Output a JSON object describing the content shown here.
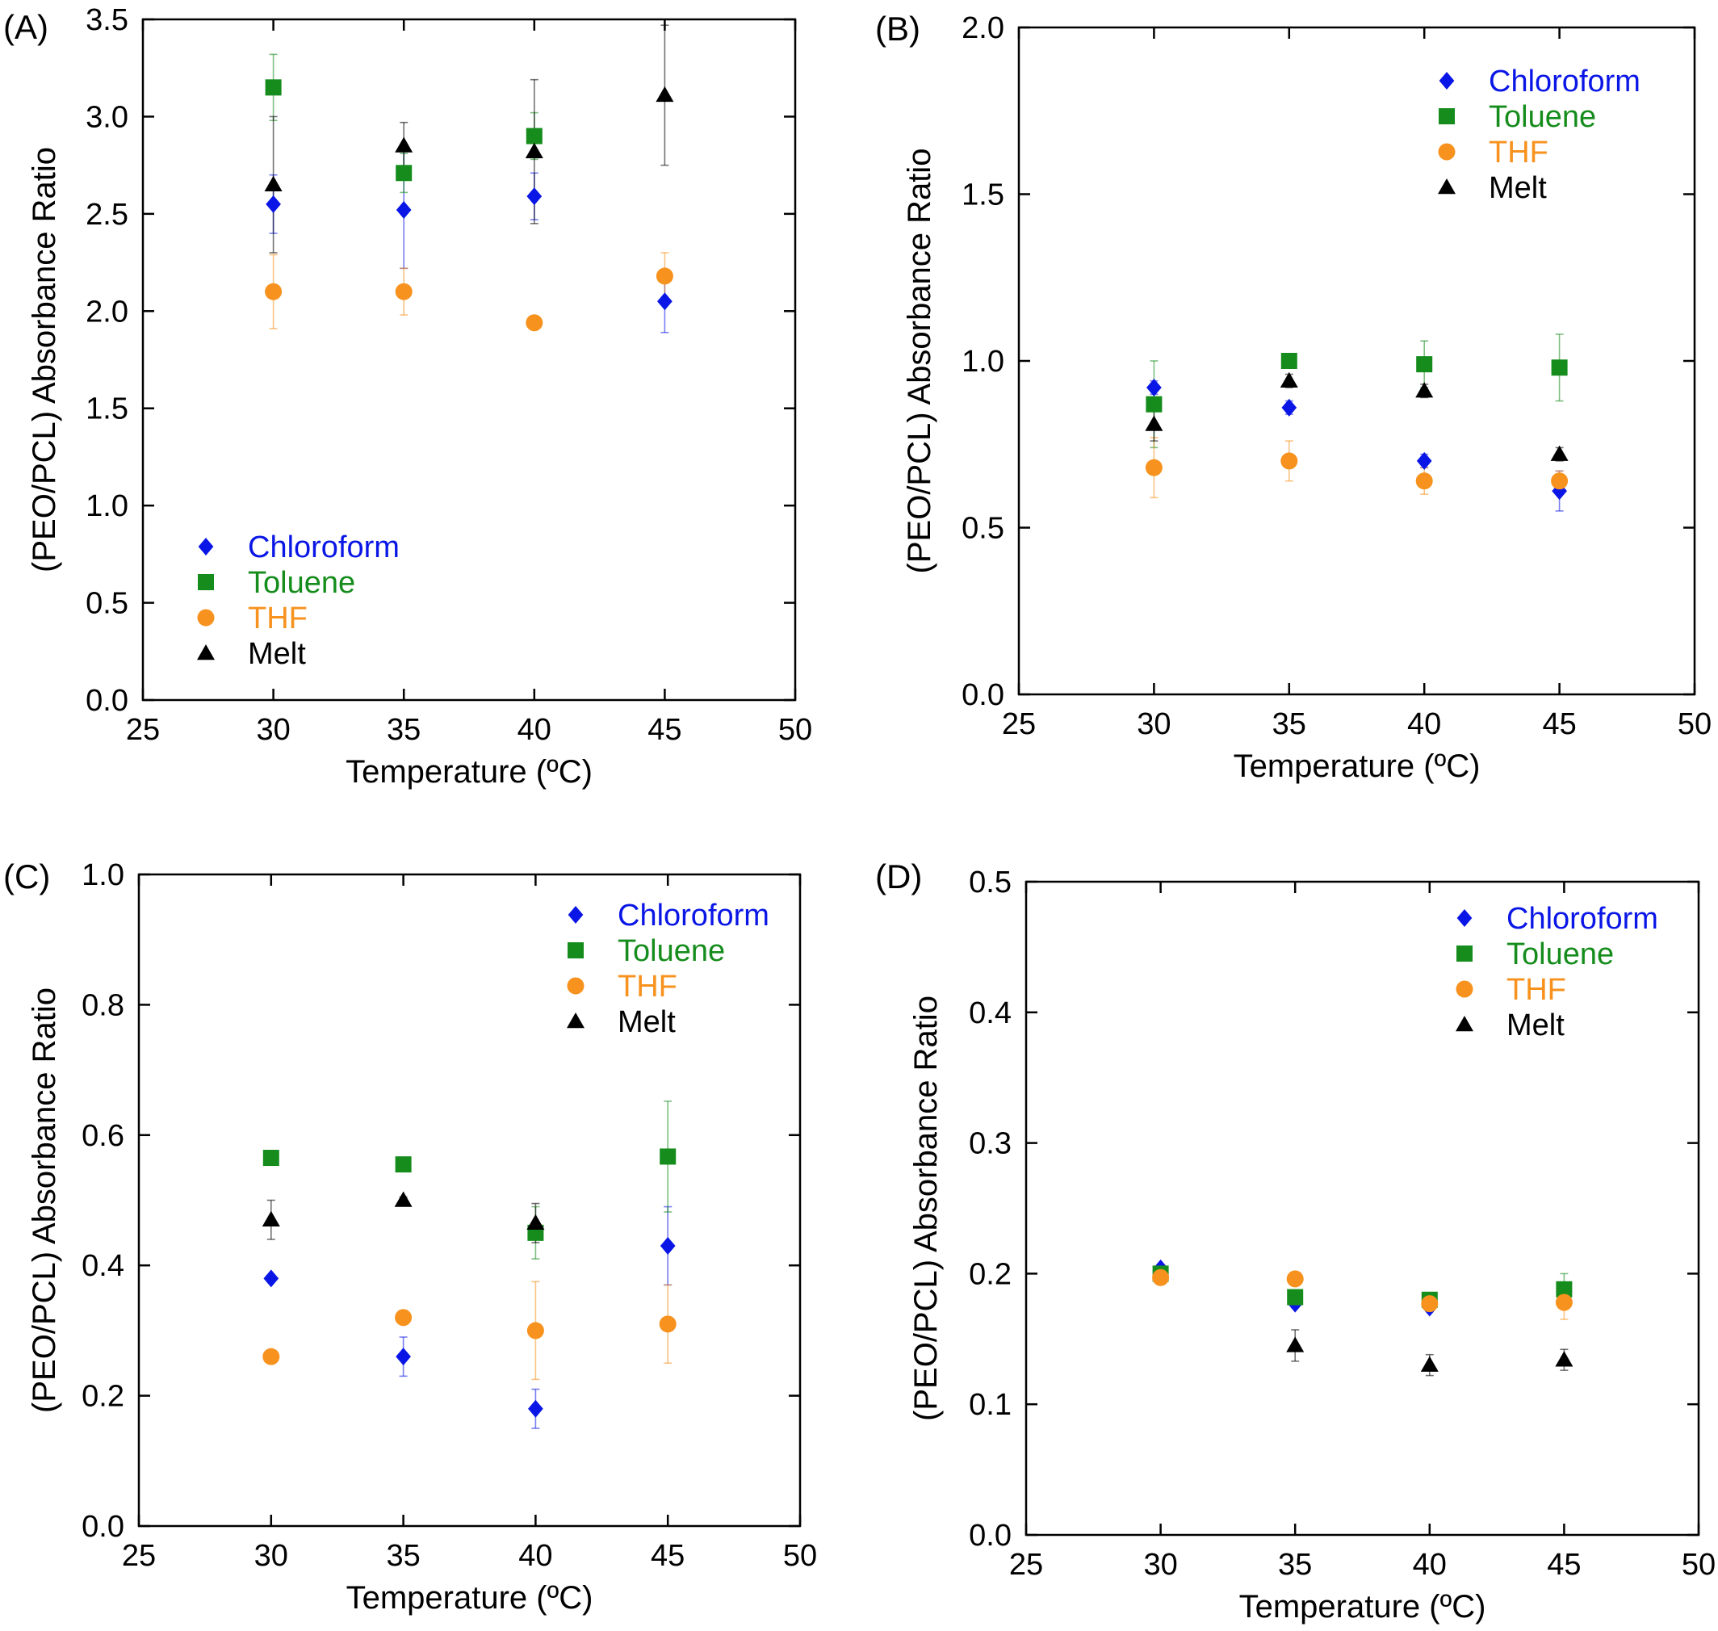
{
  "figure": {
    "panel_labels": [
      "(A)",
      "(B)",
      "(C)",
      "(D)"
    ]
  },
  "legend_series": [
    "Chloroform",
    "Toluene",
    "THF",
    "Melt"
  ],
  "series_colors": {
    "Chloroform": "#0a16e6",
    "Toluene": "#158c1c",
    "THF": "#f7921e",
    "Melt": "#000000"
  },
  "series_markers": {
    "Chloroform": "diamond",
    "Toluene": "square",
    "THF": "circle",
    "Melt": "triangle"
  },
  "chart_data": [
    {
      "panel": "(A)",
      "type": "scatter",
      "xlabel": "Temperature (ºC)",
      "ylabel": "(PEO/PCL) Absorbance Ratio",
      "xlim": [
        25,
        50
      ],
      "ylim": [
        0,
        3.5
      ],
      "xticks": [
        "25",
        "30",
        "35",
        "40",
        "45",
        "50"
      ],
      "yticks": [
        "0.0",
        "0.5",
        "1.0",
        "1.5",
        "2.0",
        "2.5",
        "3.0",
        "3.5"
      ],
      "legend_position": "bottom-left",
      "grid": false,
      "x": [
        30,
        35,
        40,
        45
      ],
      "series": [
        {
          "name": "Chloroform",
          "values": [
            2.55,
            2.52,
            2.59,
            2.05
          ],
          "errors": [
            0.15,
            0.3,
            0.12,
            0.16
          ]
        },
        {
          "name": "Toluene",
          "values": [
            3.15,
            2.71,
            2.9,
            null
          ],
          "errors": [
            0.17,
            0.1,
            0.12,
            null
          ]
        },
        {
          "name": "THF",
          "values": [
            2.1,
            2.1,
            1.94,
            2.18
          ],
          "errors": [
            0.19,
            0.12,
            0.02,
            0.12
          ]
        },
        {
          "name": "Melt",
          "values": [
            2.65,
            2.85,
            2.82,
            3.11
          ],
          "errors": [
            0.35,
            0.12,
            0.37,
            0.36
          ]
        }
      ]
    },
    {
      "panel": "(B)",
      "type": "scatter",
      "xlabel": "Temperature (ºC)",
      "ylabel": "(PEO/PCL) Absorbance Ratio",
      "xlim": [
        25,
        50
      ],
      "ylim": [
        0,
        2.0
      ],
      "xticks": [
        "25",
        "30",
        "35",
        "40",
        "45",
        "50"
      ],
      "yticks": [
        "0.0",
        "0.5",
        "1.0",
        "1.5",
        "2.0"
      ],
      "legend_position": "top-right",
      "grid": false,
      "x": [
        30,
        35,
        40,
        45
      ],
      "series": [
        {
          "name": "Chloroform",
          "values": [
            0.92,
            0.86,
            0.7,
            0.61
          ],
          "errors": [
            0.02,
            0.02,
            0.02,
            0.06
          ]
        },
        {
          "name": "Toluene",
          "values": [
            0.87,
            1.0,
            0.99,
            0.98
          ],
          "errors": [
            0.13,
            0.02,
            0.07,
            0.1
          ]
        },
        {
          "name": "THF",
          "values": [
            0.68,
            0.7,
            0.64,
            0.64
          ],
          "errors": [
            0.09,
            0.06,
            0.04,
            0.03
          ]
        },
        {
          "name": "Melt",
          "values": [
            0.81,
            0.94,
            0.91,
            0.72
          ],
          "errors": [
            0.05,
            0.02,
            0.02,
            0.02
          ]
        }
      ]
    },
    {
      "panel": "(C)",
      "type": "scatter",
      "xlabel": "Temperature (ºC)",
      "ylabel": "(PEO/PCL) Absorbance Ratio",
      "xlim": [
        25,
        50
      ],
      "ylim": [
        0,
        1.0
      ],
      "xticks": [
        "25",
        "30",
        "35",
        "40",
        "45",
        "50"
      ],
      "yticks": [
        "0.0",
        "0.2",
        "0.4",
        "0.6",
        "0.8",
        "1.0"
      ],
      "legend_position": "top-right",
      "grid": false,
      "x": [
        30,
        35,
        40,
        45
      ],
      "series": [
        {
          "name": "Chloroform",
          "values": [
            0.38,
            0.26,
            0.18,
            0.43
          ],
          "errors": [
            0.005,
            0.03,
            0.03,
            0.06
          ]
        },
        {
          "name": "Toluene",
          "values": [
            0.565,
            0.555,
            0.45,
            0.567
          ],
          "errors": [
            0.005,
            0.005,
            0.04,
            0.085
          ]
        },
        {
          "name": "THF",
          "values": [
            0.26,
            0.32,
            0.3,
            0.31
          ],
          "errors": [
            0.005,
            0.005,
            0.075,
            0.06
          ]
        },
        {
          "name": "Melt",
          "values": [
            0.47,
            0.5,
            0.465,
            null
          ],
          "errors": [
            0.03,
            0.005,
            0.03,
            null
          ]
        }
      ]
    },
    {
      "panel": "(D)",
      "type": "scatter",
      "xlabel": "Temperature (ºC)",
      "ylabel": "(PEO/PCL) Absorbance Ratio",
      "xlim": [
        25,
        50
      ],
      "ylim": [
        0,
        0.5
      ],
      "xticks": [
        "25",
        "30",
        "35",
        "40",
        "45",
        "50"
      ],
      "yticks": [
        "0.0",
        "0.1",
        "0.2",
        "0.3",
        "0.4",
        "0.5"
      ],
      "legend_position": "top-right",
      "grid": false,
      "x": [
        30,
        35,
        40,
        45
      ],
      "series": [
        {
          "name": "Chloroform",
          "values": [
            0.204,
            0.177,
            0.174,
            0.186
          ],
          "errors": [
            0.002,
            0.003,
            0.003,
            0.003
          ]
        },
        {
          "name": "Toluene",
          "values": [
            0.2,
            0.182,
            0.18,
            0.188
          ],
          "errors": [
            0.002,
            0.003,
            0.004,
            0.012
          ]
        },
        {
          "name": "THF",
          "values": [
            0.197,
            0.196,
            0.177,
            0.178
          ],
          "errors": [
            0.002,
            0.003,
            0.003,
            0.013
          ]
        },
        {
          "name": "Melt",
          "values": [
            null,
            0.145,
            0.13,
            0.134
          ],
          "errors": [
            null,
            0.012,
            0.008,
            0.008
          ]
        }
      ]
    }
  ]
}
